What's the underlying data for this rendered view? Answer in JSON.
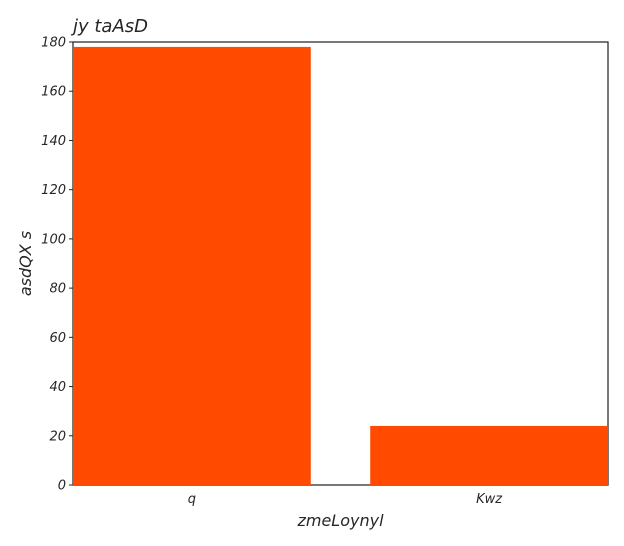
{
  "chart_data": {
    "type": "bar",
    "title": "jy   taAsD",
    "xlabel": "zmeLoynyl",
    "ylabel": "asdQX s",
    "categories": [
      "q",
      "Kwz"
    ],
    "values": [
      178,
      24
    ],
    "ylim": [
      0,
      180
    ],
    "yticks": [
      0,
      20,
      40,
      60,
      80,
      100,
      120,
      140,
      160,
      180
    ],
    "grid": false,
    "bar_color": "#ff4a00",
    "axis_color": "#262626",
    "text_color": "#262626"
  }
}
